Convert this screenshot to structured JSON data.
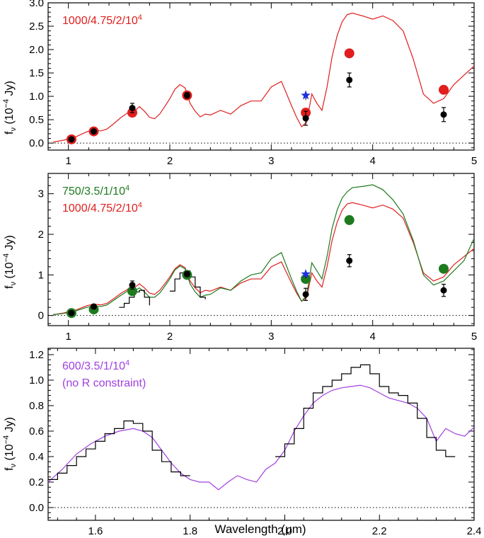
{
  "figure": {
    "x_axis_label": "Wavelength (μm)",
    "y_axis_label_prefix": "f",
    "y_axis_label_sub": "ν",
    "y_axis_label_rest": " (10",
    "y_axis_label_exp": "−4",
    "y_axis_label_unit": " Jy)"
  },
  "colors": {
    "red": "#e01e1e",
    "green": "#1e7a1e",
    "purple": "#a040e0",
    "black": "#000000",
    "blue": "#2030e0"
  },
  "chart_data": [
    {
      "type": "line",
      "panel": "top",
      "xlim": [
        0.8,
        5.0
      ],
      "ylim": [
        -0.15,
        3.0
      ],
      "xticks": [
        1,
        2,
        3,
        4,
        5
      ],
      "yticks": [
        0.0,
        0.5,
        1.0,
        1.5,
        2.0,
        2.5,
        3.0
      ],
      "ytick_labels": [
        "0.0",
        "0.5",
        "1.0",
        "1.5",
        "2.0",
        "2.5",
        "3.0"
      ],
      "legend": [
        {
          "text": "1000/4.75/2/10",
          "exp": "4",
          "color": "#e01e1e"
        }
      ],
      "series": [
        {
          "kind": "line",
          "color": "#e01e1e",
          "x": [
            0.85,
            0.95,
            1.02,
            1.08,
            1.12,
            1.18,
            1.25,
            1.32,
            1.38,
            1.45,
            1.52,
            1.58,
            1.62,
            1.66,
            1.7,
            1.75,
            1.8,
            1.85,
            1.9,
            1.95,
            2.0,
            2.05,
            2.1,
            2.15,
            2.2,
            2.25,
            2.3,
            2.35,
            2.4,
            2.5,
            2.6,
            2.7,
            2.8,
            2.9,
            3.0,
            3.1,
            3.2,
            3.25,
            3.3,
            3.35,
            3.4,
            3.45,
            3.5,
            3.55,
            3.6,
            3.65,
            3.7,
            3.75,
            3.8,
            3.9,
            4.0,
            4.1,
            4.2,
            4.3,
            4.4,
            4.5,
            4.6,
            4.7,
            4.8,
            4.9,
            5.0
          ],
          "y": [
            0.02,
            0.06,
            0.1,
            0.14,
            0.18,
            0.24,
            0.28,
            0.26,
            0.3,
            0.42,
            0.55,
            0.64,
            0.72,
            0.7,
            0.78,
            0.68,
            0.55,
            0.52,
            0.62,
            0.78,
            0.95,
            1.15,
            1.25,
            1.18,
            0.85,
            0.68,
            0.56,
            0.62,
            0.6,
            0.7,
            0.62,
            0.8,
            0.9,
            0.9,
            1.2,
            1.32,
            0.8,
            0.55,
            0.35,
            0.45,
            1.05,
            0.85,
            0.7,
            1.2,
            1.85,
            2.3,
            2.6,
            2.75,
            2.78,
            2.72,
            2.65,
            2.72,
            2.62,
            2.4,
            1.8,
            1.05,
            0.85,
            0.95,
            1.25,
            1.45,
            1.65
          ]
        },
        {
          "kind": "points",
          "color": "#e01e1e",
          "x": [
            1.03,
            1.25,
            1.63,
            2.17,
            3.34,
            3.77,
            4.7
          ],
          "y": [
            0.08,
            0.25,
            0.65,
            1.02,
            0.65,
            1.92,
            1.14
          ]
        },
        {
          "kind": "points",
          "color": "#000000",
          "x": [
            1.03,
            1.25,
            1.63,
            2.17,
            3.34,
            3.77,
            4.7
          ],
          "y": [
            0.08,
            0.25,
            0.75,
            1.02,
            0.53,
            1.35,
            0.61
          ],
          "err": [
            0.03,
            0.04,
            0.1,
            0.06,
            0.15,
            0.15,
            0.15
          ]
        },
        {
          "kind": "star",
          "color": "#2030e0",
          "x": [
            3.34
          ],
          "y": [
            1.02
          ],
          "err": [
            0.1
          ]
        }
      ]
    },
    {
      "type": "line",
      "panel": "middle",
      "xlim": [
        0.8,
        5.0
      ],
      "ylim": [
        -0.25,
        3.5
      ],
      "xticks": [
        1,
        2,
        3,
        4,
        5
      ],
      "yticks": [
        0,
        1,
        2,
        3
      ],
      "ytick_labels": [
        "0",
        "1",
        "2",
        "3"
      ],
      "legend": [
        {
          "text": "750/3.5/1/10",
          "exp": "4",
          "color": "#1e7a1e"
        },
        {
          "text": "1000/4.75/2/10",
          "exp": "4",
          "color": "#e01e1e"
        }
      ],
      "series": [
        {
          "kind": "line",
          "color": "#e01e1e",
          "x": [
            0.85,
            0.95,
            1.02,
            1.08,
            1.12,
            1.18,
            1.25,
            1.32,
            1.38,
            1.45,
            1.52,
            1.58,
            1.62,
            1.66,
            1.7,
            1.75,
            1.8,
            1.85,
            1.9,
            1.95,
            2.0,
            2.05,
            2.1,
            2.15,
            2.2,
            2.25,
            2.3,
            2.35,
            2.4,
            2.5,
            2.6,
            2.7,
            2.8,
            2.9,
            3.0,
            3.1,
            3.2,
            3.25,
            3.3,
            3.35,
            3.4,
            3.45,
            3.5,
            3.55,
            3.6,
            3.65,
            3.7,
            3.75,
            3.8,
            3.9,
            4.0,
            4.1,
            4.2,
            4.3,
            4.4,
            4.5,
            4.6,
            4.7,
            4.8,
            4.9,
            5.0
          ],
          "y": [
            0.02,
            0.06,
            0.1,
            0.14,
            0.18,
            0.24,
            0.28,
            0.26,
            0.3,
            0.42,
            0.55,
            0.64,
            0.72,
            0.7,
            0.78,
            0.68,
            0.55,
            0.52,
            0.62,
            0.78,
            0.95,
            1.15,
            1.25,
            1.18,
            0.85,
            0.68,
            0.56,
            0.62,
            0.6,
            0.7,
            0.62,
            0.8,
            0.9,
            0.9,
            1.2,
            1.32,
            0.8,
            0.55,
            0.35,
            0.45,
            1.05,
            0.85,
            0.7,
            1.2,
            1.85,
            2.3,
            2.6,
            2.75,
            2.78,
            2.72,
            2.65,
            2.72,
            2.62,
            2.4,
            1.8,
            1.05,
            0.85,
            0.95,
            1.25,
            1.45,
            1.65
          ]
        },
        {
          "kind": "line",
          "color": "#1e7a1e",
          "x": [
            0.85,
            0.95,
            1.02,
            1.08,
            1.12,
            1.18,
            1.25,
            1.32,
            1.38,
            1.45,
            1.52,
            1.58,
            1.62,
            1.66,
            1.7,
            1.75,
            1.8,
            1.85,
            1.9,
            1.95,
            2.0,
            2.05,
            2.1,
            2.15,
            2.2,
            2.25,
            2.3,
            2.35,
            2.4,
            2.5,
            2.6,
            2.7,
            2.8,
            2.9,
            3.0,
            3.1,
            3.2,
            3.25,
            3.3,
            3.35,
            3.4,
            3.45,
            3.5,
            3.55,
            3.6,
            3.65,
            3.7,
            3.75,
            3.8,
            3.9,
            4.0,
            4.1,
            4.2,
            4.3,
            4.4,
            4.5,
            4.6,
            4.7,
            4.8,
            4.9,
            5.0
          ],
          "y": [
            0.02,
            0.05,
            0.08,
            0.12,
            0.15,
            0.2,
            0.24,
            0.22,
            0.26,
            0.38,
            0.5,
            0.6,
            0.68,
            0.62,
            0.68,
            0.58,
            0.45,
            0.45,
            0.55,
            0.72,
            0.9,
            1.12,
            1.22,
            1.15,
            0.78,
            0.58,
            0.45,
            0.5,
            0.52,
            0.68,
            0.62,
            0.85,
            1.0,
            1.05,
            1.4,
            1.55,
            0.9,
            0.6,
            0.35,
            0.5,
            1.3,
            1.1,
            0.9,
            1.45,
            2.15,
            2.6,
            2.9,
            3.05,
            3.15,
            3.18,
            3.22,
            3.1,
            2.85,
            2.5,
            1.85,
            1.0,
            0.75,
            0.85,
            1.1,
            1.35,
            1.9
          ]
        },
        {
          "kind": "line",
          "color": "#000000",
          "step": true,
          "x": [
            1.5,
            1.55,
            1.6,
            1.65,
            1.7,
            1.75,
            1.8,
            2.0,
            2.05,
            2.1,
            2.15,
            2.2,
            2.25,
            2.3,
            2.35
          ],
          "y": [
            0.2,
            0.3,
            0.45,
            0.58,
            0.62,
            0.45,
            0.25,
            0.6,
            0.9,
            1.05,
            1.1,
            0.95,
            0.7,
            0.45,
            0.4
          ]
        },
        {
          "kind": "points",
          "color": "#1e7a1e",
          "x": [
            1.03,
            1.25,
            1.63,
            2.17,
            3.34,
            3.77,
            4.7
          ],
          "y": [
            0.06,
            0.15,
            0.6,
            1.0,
            0.9,
            2.35,
            1.15
          ]
        },
        {
          "kind": "points",
          "color": "#000000",
          "x": [
            1.03,
            1.25,
            1.63,
            2.17,
            3.34,
            3.77,
            4.7
          ],
          "y": [
            0.06,
            0.22,
            0.75,
            1.02,
            0.52,
            1.35,
            0.62
          ],
          "err": [
            0.03,
            0.04,
            0.1,
            0.06,
            0.15,
            0.15,
            0.15
          ]
        },
        {
          "kind": "star",
          "color": "#2030e0",
          "x": [
            3.34
          ],
          "y": [
            1.02
          ],
          "err": [
            0.1
          ]
        }
      ]
    },
    {
      "type": "line",
      "panel": "bottom",
      "xlim": [
        1.5,
        2.4
      ],
      "ylim": [
        -0.1,
        1.25
      ],
      "xticks": [
        1.6,
        1.8,
        2.0,
        2.2,
        2.4
      ],
      "xtick_labels": [
        "1.6",
        "1.8",
        "2.0",
        "2.2",
        "2.4"
      ],
      "yticks": [
        0.0,
        0.2,
        0.4,
        0.6,
        0.8,
        1.0,
        1.2
      ],
      "ytick_labels": [
        "0.0",
        "0.2",
        "0.4",
        "0.6",
        "0.8",
        "1.0",
        "1.2"
      ],
      "legend": [
        {
          "text": "600/3.5/1/10",
          "exp": "4",
          "color": "#a040e0"
        },
        {
          "text": "(no R constraint)",
          "exp": "",
          "color": "#a040e0"
        }
      ],
      "series": [
        {
          "kind": "line",
          "color": "#a040e0",
          "x": [
            1.5,
            1.53,
            1.56,
            1.59,
            1.62,
            1.65,
            1.68,
            1.7,
            1.72,
            1.74,
            1.76,
            1.78,
            1.8,
            1.82,
            1.84,
            1.86,
            1.88,
            1.9,
            1.92,
            1.94,
            1.96,
            1.98,
            2.0,
            2.02,
            2.04,
            2.06,
            2.08,
            2.1,
            2.12,
            2.14,
            2.16,
            2.18,
            2.2,
            2.22,
            2.24,
            2.26,
            2.28,
            2.3,
            2.32,
            2.34,
            2.36,
            2.38,
            2.4
          ],
          "y": [
            0.2,
            0.3,
            0.42,
            0.5,
            0.56,
            0.6,
            0.62,
            0.6,
            0.55,
            0.45,
            0.35,
            0.27,
            0.22,
            0.2,
            0.2,
            0.14,
            0.2,
            0.25,
            0.22,
            0.2,
            0.3,
            0.35,
            0.45,
            0.6,
            0.72,
            0.82,
            0.88,
            0.92,
            0.94,
            0.95,
            0.96,
            0.94,
            0.9,
            0.86,
            0.84,
            0.82,
            0.78,
            0.7,
            0.52,
            0.62,
            0.58,
            0.56,
            0.63
          ]
        },
        {
          "kind": "line",
          "color": "#000000",
          "step": true,
          "x": [
            1.5,
            1.52,
            1.54,
            1.56,
            1.58,
            1.6,
            1.62,
            1.64,
            1.66,
            1.68,
            1.7,
            1.72,
            1.74,
            1.76,
            1.78,
            1.8,
            1.98,
            2.0,
            2.02,
            2.04,
            2.06,
            2.08,
            2.1,
            2.12,
            2.14,
            2.16,
            2.18,
            2.2,
            2.22,
            2.24,
            2.26,
            2.28,
            2.3,
            2.32,
            2.34,
            2.36
          ],
          "y": [
            0.22,
            0.27,
            0.33,
            0.4,
            0.46,
            0.52,
            0.58,
            0.62,
            0.68,
            0.66,
            0.6,
            0.45,
            0.36,
            0.28,
            0.25,
            0.25,
            0.4,
            0.5,
            0.62,
            0.78,
            0.9,
            0.95,
            1.0,
            1.05,
            1.1,
            1.12,
            1.05,
            0.95,
            0.9,
            0.88,
            0.82,
            0.7,
            0.55,
            0.45,
            0.4,
            0.4
          ]
        }
      ]
    }
  ]
}
